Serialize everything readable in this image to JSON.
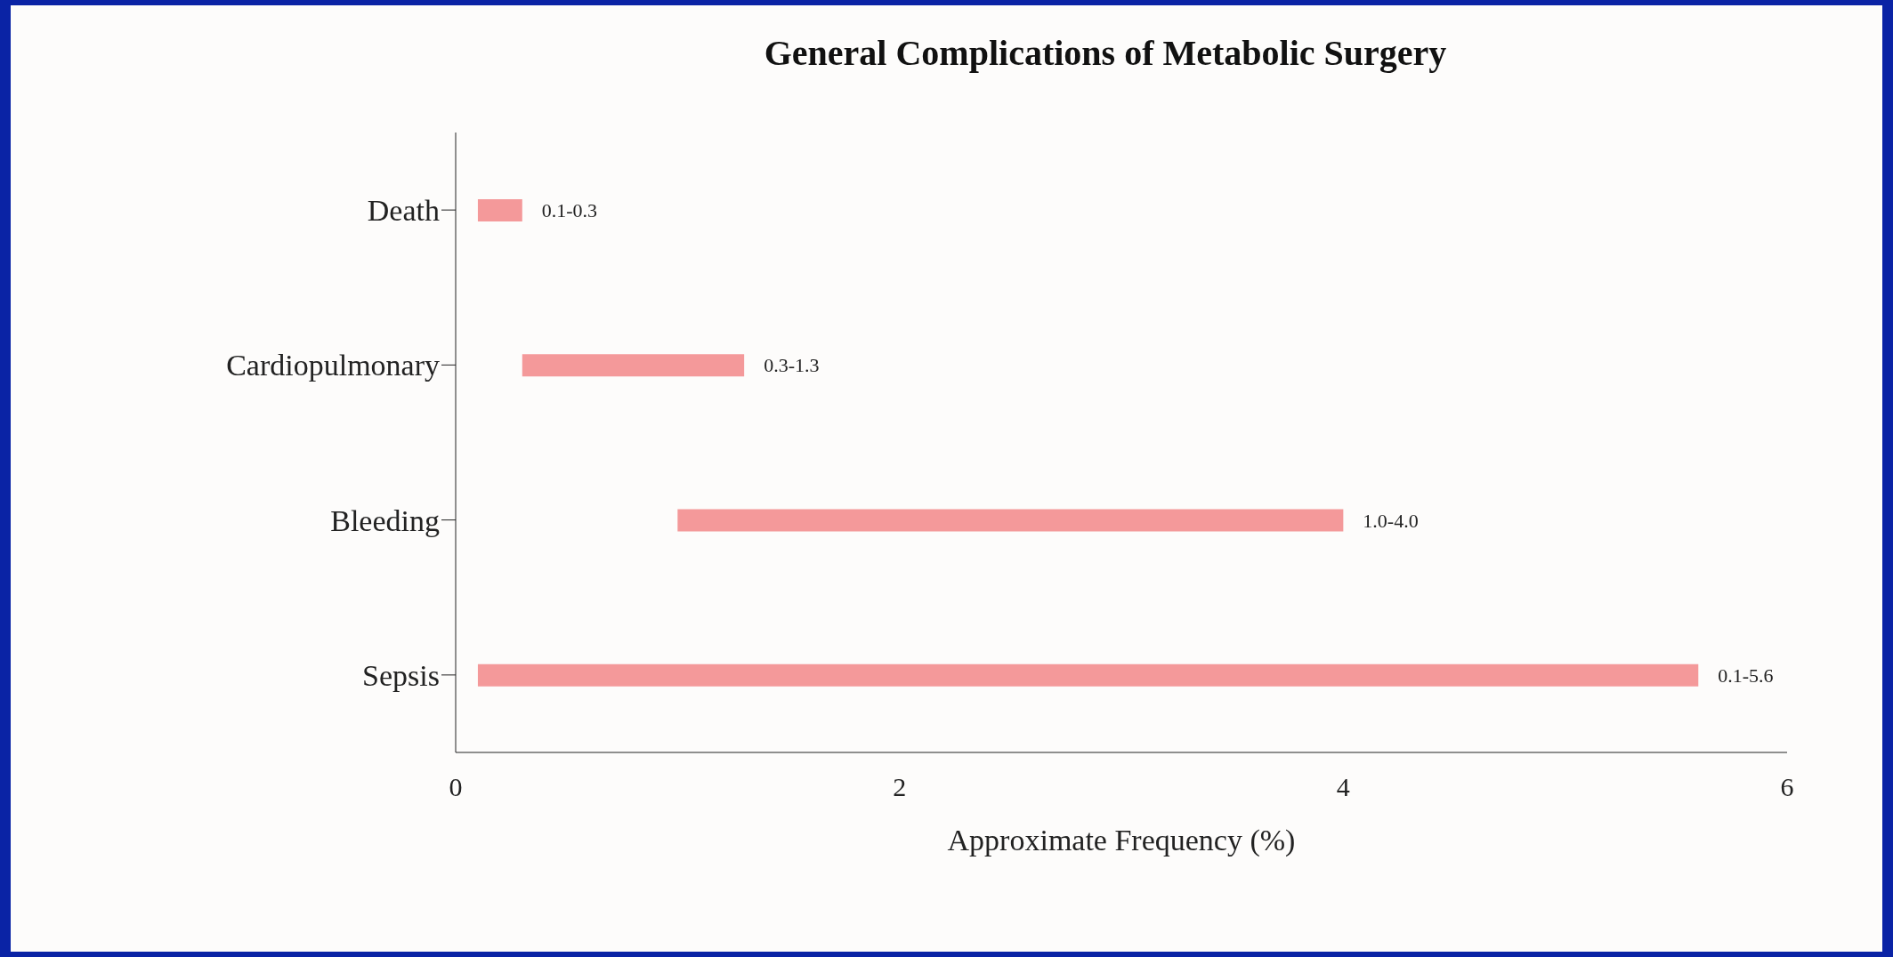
{
  "chart_data": {
    "type": "bar",
    "orientation": "horizontal",
    "title": "General Complications of Metabolic Surgery",
    "xlabel": "Approximate Frequency (%)",
    "categories": [
      "Death",
      "Cardiopulmonary",
      "Bleeding",
      "Sepsis"
    ],
    "base": [
      0.1,
      0.3,
      1.0,
      0.1
    ],
    "values": [
      0.2,
      1.0,
      3.0,
      5.5
    ],
    "value_labels": [
      "0.1-0.3",
      "0.3-1.3",
      "1.0-4.0",
      "0.1-5.6"
    ],
    "color": "#f4999a",
    "xlim": [
      0,
      6
    ],
    "xticks": [
      0,
      2,
      4,
      6
    ],
    "grid": false,
    "legend": false
  }
}
